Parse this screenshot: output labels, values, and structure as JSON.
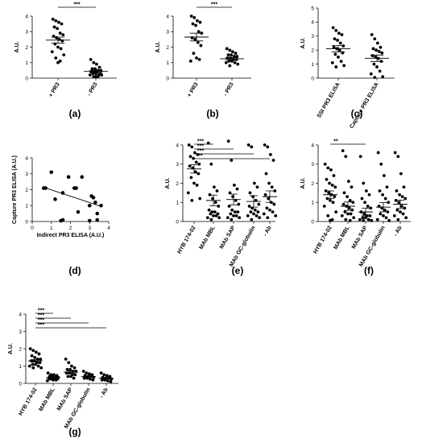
{
  "chart_data": [
    {
      "panel": "(a)",
      "type": "scatter",
      "ylabel": "A.U.",
      "ylim": [
        0,
        4
      ],
      "yticks": [
        0,
        1,
        2,
        3,
        4
      ],
      "categories": [
        "+ PR3",
        "- PR3"
      ],
      "series": [
        {
          "values": [
            3.8,
            3.7,
            3.6,
            3.5,
            3.3,
            3.2,
            2.9,
            2.8,
            2.7,
            2.6,
            2.5,
            2.4,
            2.2,
            2.0,
            1.9,
            1.7,
            1.5,
            1.3,
            1.1,
            1.0
          ],
          "mean": 2.45,
          "sem": 0.2
        },
        {
          "values": [
            1.2,
            1.0,
            0.9,
            0.7,
            0.6,
            0.6,
            0.5,
            0.5,
            0.4,
            0.4,
            0.4,
            0.3,
            0.3,
            0.3,
            0.2,
            0.2,
            0.2,
            0.1,
            0.1,
            0.1
          ],
          "mean": 0.43,
          "sem": 0.07
        }
      ],
      "brackets": [
        {
          "from": 0,
          "to": 1,
          "label": "***"
        }
      ]
    },
    {
      "panel": "(b)",
      "type": "scatter",
      "ylabel": "A.U.",
      "ylim": [
        0,
        4
      ],
      "yticks": [
        0,
        1,
        2,
        3,
        4
      ],
      "categories": [
        "+ PR3",
        "- PR3"
      ],
      "series": [
        {
          "values": [
            4.0,
            3.9,
            3.7,
            3.6,
            3.5,
            3.4,
            3.0,
            2.9,
            2.6,
            2.5,
            2.3,
            2.1,
            1.6,
            1.3,
            1.2,
            1.1
          ],
          "mean": 2.65,
          "sem": 0.25
        },
        {
          "values": [
            1.9,
            1.8,
            1.7,
            1.6,
            1.5,
            1.5,
            1.4,
            1.4,
            1.3,
            1.3,
            1.2,
            1.2,
            1.1,
            1.1,
            1.0,
            1.0,
            0.9,
            0.8
          ],
          "mean": 1.25,
          "sem": 0.07
        }
      ],
      "brackets": [
        {
          "from": 0,
          "to": 1,
          "label": "***"
        }
      ]
    },
    {
      "panel": "(c)",
      "type": "scatter",
      "ylabel": "A.U.",
      "ylim": [
        0,
        5
      ],
      "yticks": [
        0,
        1,
        2,
        3,
        4,
        5
      ],
      "categories": [
        "SSI PR3 ELISA",
        "Capture PR3 ELISA"
      ],
      "series": [
        {
          "values": [
            3.6,
            3.4,
            3.2,
            3.1,
            2.8,
            2.7,
            2.5,
            2.3,
            2.2,
            2.1,
            2.0,
            1.8,
            1.7,
            1.5,
            1.2,
            1.1,
            0.9,
            0.8
          ],
          "mean": 2.1,
          "sem": 0.22
        },
        {
          "values": [
            3.1,
            2.8,
            2.5,
            2.2,
            2.1,
            2.0,
            1.9,
            1.8,
            1.6,
            1.5,
            1.4,
            1.2,
            1.0,
            0.8,
            0.5,
            0.3,
            0.1,
            0.05
          ],
          "mean": 1.42,
          "sem": 0.23
        }
      ],
      "brackets": []
    },
    {
      "panel": "(d)",
      "type": "scatter",
      "xlabel": "Indirect PR3 ELISA (A.U.)",
      "ylabel": "Capture PR3 ELISA (A.U.)",
      "xlim": [
        0,
        4
      ],
      "ylim": [
        0,
        4
      ],
      "xticks": [
        0,
        1,
        2,
        3,
        4
      ],
      "yticks": [
        0,
        1,
        2,
        3,
        4
      ],
      "points": [
        [
          0.6,
          2.1
        ],
        [
          0.7,
          2.1
        ],
        [
          1.0,
          3.1
        ],
        [
          1.2,
          1.4
        ],
        [
          1.5,
          0.05
        ],
        [
          1.6,
          0.1
        ],
        [
          1.6,
          1.8
        ],
        [
          1.9,
          2.8
        ],
        [
          2.2,
          2.1
        ],
        [
          2.3,
          2.1
        ],
        [
          2.4,
          0.6
        ],
        [
          2.6,
          2.8
        ],
        [
          3.0,
          0.05
        ],
        [
          3.0,
          1.0
        ],
        [
          3.1,
          1.6
        ],
        [
          3.2,
          1.5
        ],
        [
          3.3,
          1.2
        ],
        [
          3.4,
          0.5
        ],
        [
          3.4,
          0.1
        ],
        [
          3.6,
          1.0
        ]
      ],
      "fit": [
        [
          0.6,
          2.15
        ],
        [
          3.6,
          0.95
        ]
      ]
    },
    {
      "panel": "(e)",
      "type": "scatter",
      "ylabel": "A.U.",
      "ylim": [
        0,
        4
      ],
      "yticks": [
        0,
        1,
        2,
        3,
        4
      ],
      "categories": [
        "HYB 174-02",
        "MAb MBL",
        "MAb SAP",
        "MAb GC-globulin",
        "- Ab"
      ],
      "series": [
        {
          "values": [
            4.0,
            3.9,
            3.6,
            3.5,
            3.4,
            3.3,
            3.1,
            3.0,
            2.9,
            2.8,
            2.6,
            2.5,
            2.3,
            2.0,
            1.9,
            1.5,
            1.2,
            1.1
          ],
          "mean": 2.75,
          "sem": 0.22
        },
        {
          "values": [
            4.1,
            3.0,
            1.8,
            1.6,
            1.4,
            1.2,
            1.0,
            0.8,
            0.6,
            0.5,
            0.5,
            0.4,
            0.4,
            0.3,
            0.3,
            0.2,
            0.2,
            0.1
          ],
          "mean": 1.1,
          "sem": 0.28
        },
        {
          "values": [
            4.2,
            3.2,
            1.9,
            1.7,
            1.5,
            1.3,
            1.1,
            0.9,
            0.8,
            0.6,
            0.5,
            0.5,
            0.4,
            0.3,
            0.3,
            0.2,
            0.2,
            0.1
          ],
          "mean": 1.15,
          "sem": 0.28
        },
        {
          "values": [
            4.0,
            3.9,
            2.0,
            1.8,
            1.5,
            1.3,
            1.1,
            0.9,
            0.8,
            0.7,
            0.6,
            0.5,
            0.5,
            0.4,
            0.3,
            0.3,
            0.2,
            0.1
          ],
          "mean": 1.05,
          "sem": 0.3
        },
        {
          "values": [
            4.0,
            3.9,
            3.5,
            3.2,
            2.5,
            2.0,
            1.8,
            1.6,
            1.4,
            1.2,
            1.0,
            0.9,
            0.7,
            0.6,
            0.5,
            0.4,
            0.3,
            0.2
          ],
          "mean": 1.3,
          "sem": 0.3
        }
      ],
      "brackets": [
        {
          "from": 0,
          "to": 1,
          "label": "***"
        },
        {
          "from": 0,
          "to": 2,
          "label": "***"
        },
        {
          "from": 0,
          "to": 3,
          "label": "***"
        },
        {
          "from": 0,
          "to": 4,
          "label": "**"
        }
      ]
    },
    {
      "panel": "(f)",
      "type": "scatter",
      "ylabel": "A.U.",
      "ylim": [
        0,
        4
      ],
      "yticks": [
        0,
        1,
        2,
        3,
        4
      ],
      "categories": [
        "HYB 174-02",
        "MAb MBL",
        "MAb SAP",
        "MAb GC-globulin",
        "- Ab"
      ],
      "series": [
        {
          "values": [
            3.0,
            2.8,
            2.7,
            2.4,
            2.2,
            2.0,
            1.9,
            1.8,
            1.6,
            1.5,
            1.4,
            1.3,
            1.2,
            1.1,
            1.0,
            0.8,
            0.5,
            0.3,
            0.1,
            0.05
          ],
          "mean": 1.4,
          "sem": 0.2
        },
        {
          "values": [
            3.7,
            3.4,
            2.1,
            1.8,
            1.5,
            1.3,
            1.1,
            1.0,
            0.9,
            0.8,
            0.7,
            0.6,
            0.5,
            0.4,
            0.4,
            0.3,
            0.2,
            0.1,
            0.05
          ],
          "mean": 0.8,
          "sem": 0.22
        },
        {
          "values": [
            3.4,
            2.0,
            1.6,
            1.4,
            1.2,
            1.0,
            0.8,
            0.7,
            0.5,
            0.4,
            0.3,
            0.3,
            0.2,
            0.2,
            0.1,
            0.1,
            0.05,
            0.05
          ],
          "mean": 0.5,
          "sem": 0.2
        },
        {
          "values": [
            3.6,
            3.0,
            2.4,
            1.8,
            1.6,
            1.4,
            1.2,
            1.0,
            0.8,
            0.7,
            0.6,
            0.5,
            0.4,
            0.3,
            0.2,
            0.1,
            0.05
          ],
          "mean": 0.75,
          "sem": 0.24
        },
        {
          "values": [
            3.6,
            3.4,
            2.5,
            1.8,
            1.6,
            1.4,
            1.3,
            1.2,
            1.1,
            1.0,
            0.8,
            0.7,
            0.6,
            0.5,
            0.4,
            0.3,
            0.2,
            0.1
          ],
          "mean": 0.9,
          "sem": 0.22
        }
      ],
      "brackets": [
        {
          "from": 0,
          "to": 2,
          "label": "**"
        }
      ]
    },
    {
      "panel": "(g)",
      "type": "scatter",
      "ylabel": "A.U.",
      "ylim": [
        0,
        4
      ],
      "yticks": [
        0,
        1,
        2,
        3,
        4
      ],
      "categories": [
        "HYB 174-02",
        "MAb MBL",
        "MAb SAP",
        "MAb GC-globulin",
        "- Ab"
      ],
      "series": [
        {
          "values": [
            2.0,
            1.9,
            1.8,
            1.7,
            1.6,
            1.5,
            1.4,
            1.4,
            1.3,
            1.3,
            1.2,
            1.2,
            1.1,
            1.1,
            1.0,
            1.0,
            0.9,
            0.9
          ],
          "mean": 1.3,
          "sem": 0.07
        },
        {
          "values": [
            0.6,
            0.5,
            0.5,
            0.45,
            0.4,
            0.4,
            0.35,
            0.35,
            0.3,
            0.3,
            0.3,
            0.25,
            0.25,
            0.2,
            0.2,
            0.15
          ],
          "mean": 0.33,
          "sem": 0.03
        },
        {
          "values": [
            1.4,
            1.2,
            1.0,
            0.9,
            0.8,
            0.8,
            0.7,
            0.7,
            0.6,
            0.6,
            0.5,
            0.5,
            0.4,
            0.4,
            0.3
          ],
          "mean": 0.65,
          "sem": 0.06
        },
        {
          "values": [
            0.7,
            0.6,
            0.55,
            0.5,
            0.45,
            0.4,
            0.4,
            0.35,
            0.3,
            0.3,
            0.25,
            0.2
          ],
          "mean": 0.4,
          "sem": 0.04
        },
        {
          "values": [
            0.6,
            0.5,
            0.45,
            0.4,
            0.35,
            0.3,
            0.3,
            0.25,
            0.2,
            0.2,
            0.15,
            0.1
          ],
          "mean": 0.3,
          "sem": 0.04
        }
      ],
      "brackets": [
        {
          "from": 0,
          "to": 1,
          "label": "***"
        },
        {
          "from": 0,
          "to": 2,
          "label": "***"
        },
        {
          "from": 0,
          "to": 3,
          "label": "***"
        },
        {
          "from": 0,
          "to": 4,
          "label": "***"
        }
      ]
    }
  ]
}
